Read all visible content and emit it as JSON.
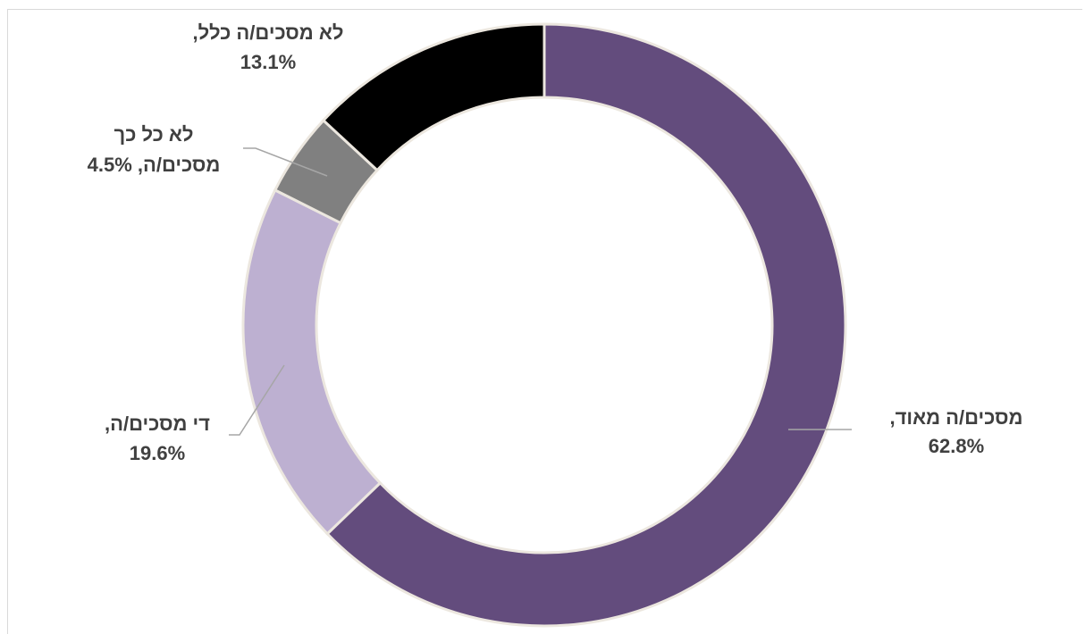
{
  "chart_data": {
    "type": "pie",
    "donut": true,
    "direction": "rtl",
    "slices": [
      {
        "label": "מסכים/ה מאוד,",
        "value": 62.8,
        "value_text": "62.8%",
        "color": "#634c7d"
      },
      {
        "label": "די מסכים/ה,",
        "value": 19.6,
        "value_text": "19.6%",
        "color": "#bdb0d1"
      },
      {
        "label": "לא כל כך מסכים/ה,",
        "value": 4.5,
        "value_text": "4.5%",
        "color": "#808080"
      },
      {
        "label": "לא מסכים/ה כלל,",
        "value": 13.1,
        "value_text": "13.1%",
        "color": "#000000"
      }
    ],
    "label_lines": [
      [
        "מסכים/ה מאוד,",
        "62.8%"
      ],
      [
        "די מסכים/ה,",
        "19.6%"
      ],
      [
        "לא כל כך",
        "מסכים/ה, 4.5%"
      ],
      [
        "לא מסכים/ה כלל,",
        "13.1%"
      ]
    ],
    "slice_border_color": "#ece7df",
    "leader_line_color": "#a6a6a6",
    "label_color": "#404040",
    "legend": "none"
  }
}
